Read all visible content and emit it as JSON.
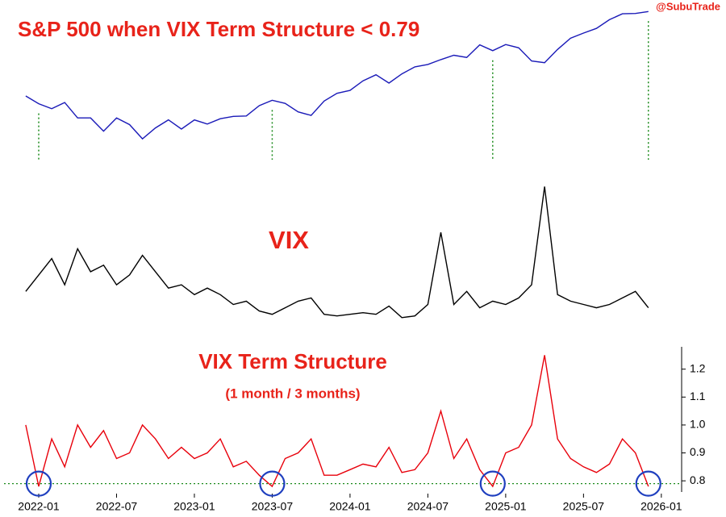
{
  "watermark": "@SubuTrade",
  "chart_data": [
    {
      "type": "line",
      "title": "S&P 500 when VIX Term Structure < 0.79",
      "color": "#1a1ab8",
      "x": [
        "2021-12",
        "2022-01",
        "2022-02",
        "2022-03",
        "2022-04",
        "2022-05",
        "2022-06",
        "2022-07",
        "2022-08",
        "2022-09",
        "2022-10",
        "2022-11",
        "2022-12",
        "2023-01",
        "2023-02",
        "2023-03",
        "2023-04",
        "2023-05",
        "2023-06",
        "2023-07",
        "2023-08",
        "2023-09",
        "2023-10",
        "2023-11",
        "2023-12",
        "2024-01",
        "2024-02",
        "2024-03",
        "2024-04",
        "2024-05",
        "2024-06",
        "2024-07",
        "2024-08",
        "2024-09",
        "2024-10",
        "2024-11",
        "2024-12",
        "2025-01",
        "2025-02",
        "2025-03",
        "2025-04",
        "2025-05",
        "2025-06",
        "2025-07",
        "2025-08",
        "2025-09",
        "2025-10",
        "2025-11",
        "2025-12"
      ],
      "values": [
        4700,
        4500,
        4370,
        4530,
        4130,
        4130,
        3785,
        4130,
        3955,
        3585,
        3870,
        4080,
        3840,
        4077,
        3970,
        4109,
        4169,
        4180,
        4450,
        4589,
        4508,
        4288,
        4194,
        4568,
        4770,
        4846,
        5096,
        5254,
        5036,
        5277,
        5460,
        5522,
        5648,
        5762,
        5705,
        6032,
        5882,
        6040,
        5955,
        5612,
        5569,
        5912,
        6205,
        6339,
        6460,
        6688,
        6840,
        6850,
        6900
      ],
      "ylim": [
        3000,
        7200
      ],
      "signal_dates": [
        "2022-01",
        "2023-07",
        "2024-12",
        "2025-12"
      ],
      "signal_color": "#1a8a1a"
    },
    {
      "type": "line",
      "title": "VIX",
      "color": "#000000",
      "x": [
        "2021-12",
        "2022-01",
        "2022-02",
        "2022-03",
        "2022-04",
        "2022-05",
        "2022-06",
        "2022-07",
        "2022-08",
        "2022-09",
        "2022-10",
        "2022-11",
        "2022-12",
        "2023-01",
        "2023-02",
        "2023-03",
        "2023-04",
        "2023-05",
        "2023-06",
        "2023-07",
        "2023-08",
        "2023-09",
        "2023-10",
        "2023-11",
        "2023-12",
        "2024-01",
        "2024-02",
        "2024-03",
        "2024-04",
        "2024-05",
        "2024-06",
        "2024-07",
        "2024-08",
        "2024-09",
        "2024-10",
        "2024-11",
        "2024-12",
        "2025-01",
        "2025-02",
        "2025-03",
        "2025-04",
        "2025-05",
        "2025-06",
        "2025-07",
        "2025-08",
        "2025-09",
        "2025-10",
        "2025-11",
        "2025-12"
      ],
      "values": [
        20,
        25,
        30,
        22,
        33,
        26,
        28,
        22,
        25,
        31,
        26,
        21,
        22,
        19,
        21,
        19,
        16,
        17,
        14,
        13,
        15,
        17,
        18,
        13,
        12.5,
        13,
        13.5,
        13,
        15.5,
        12,
        12.5,
        16,
        38,
        16,
        20,
        15,
        17,
        16,
        18,
        22,
        52,
        19,
        17,
        16,
        15,
        16,
        18,
        20,
        15
      ],
      "ylim": [
        8,
        56
      ]
    },
    {
      "type": "line",
      "title": "VIX Term Structure",
      "subtitle": "(1 month / 3 months)",
      "color": "#e8000b",
      "x": [
        "2021-12",
        "2022-01",
        "2022-02",
        "2022-03",
        "2022-04",
        "2022-05",
        "2022-06",
        "2022-07",
        "2022-08",
        "2022-09",
        "2022-10",
        "2022-11",
        "2022-12",
        "2023-01",
        "2023-02",
        "2023-03",
        "2023-04",
        "2023-05",
        "2023-06",
        "2023-07",
        "2023-08",
        "2023-09",
        "2023-10",
        "2023-11",
        "2023-12",
        "2024-01",
        "2024-02",
        "2024-03",
        "2024-04",
        "2024-05",
        "2024-06",
        "2024-07",
        "2024-08",
        "2024-09",
        "2024-10",
        "2024-11",
        "2024-12",
        "2025-01",
        "2025-02",
        "2025-03",
        "2025-04",
        "2025-05",
        "2025-06",
        "2025-07",
        "2025-08",
        "2025-09",
        "2025-10",
        "2025-11",
        "2025-12"
      ],
      "values": [
        1.0,
        0.78,
        0.95,
        0.85,
        1.0,
        0.92,
        0.98,
        0.88,
        0.9,
        1.0,
        0.95,
        0.88,
        0.92,
        0.88,
        0.9,
        0.95,
        0.85,
        0.87,
        0.82,
        0.78,
        0.88,
        0.9,
        0.95,
        0.82,
        0.82,
        0.84,
        0.86,
        0.85,
        0.92,
        0.83,
        0.84,
        0.9,
        1.05,
        0.88,
        0.95,
        0.84,
        0.78,
        0.9,
        0.92,
        1.0,
        1.25,
        0.95,
        0.88,
        0.85,
        0.83,
        0.86,
        0.95,
        0.9,
        0.78
      ],
      "ylim": [
        0.76,
        1.28
      ],
      "yticks": [
        0.8,
        0.9,
        {
          "value": 1.0,
          "label": "1.0"
        },
        1.1,
        1.2
      ],
      "xticks": [
        "2022-01",
        "2022-07",
        "2023-01",
        "2023-07",
        "2024-01",
        "2024-07",
        "2025-01",
        "2025-07",
        "2026-01"
      ],
      "threshold": 0.79,
      "threshold_color": "#1a8a1a",
      "signal_dates": [
        "2022-01",
        "2023-07",
        "2024-12",
        "2025-12"
      ],
      "signal_color": "#1f3fbf"
    }
  ]
}
